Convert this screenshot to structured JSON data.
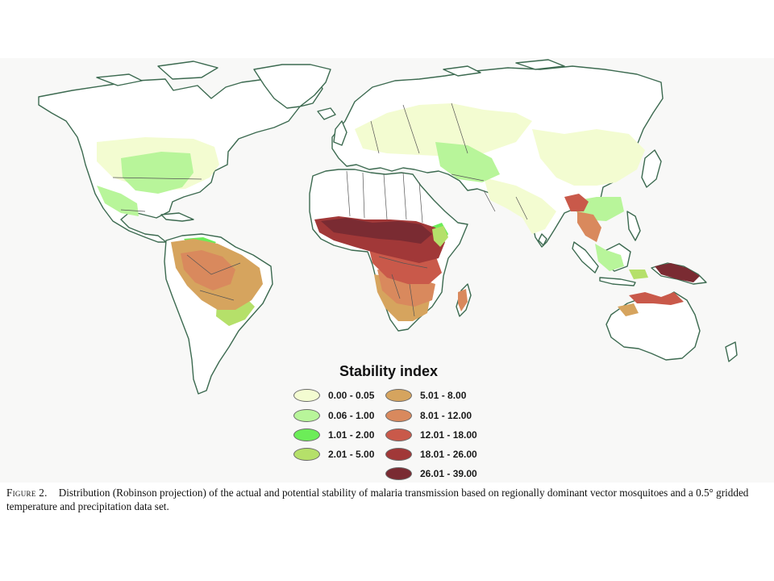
{
  "legend": {
    "title": "Stability index",
    "items": [
      {
        "label": "0.00 - 0.05",
        "color": "#f3fcd1"
      },
      {
        "label": "0.06 - 1.00",
        "color": "#b8f59a"
      },
      {
        "label": "1.01 - 2.00",
        "color": "#6ced58"
      },
      {
        "label": "2.01 - 5.00",
        "color": "#b5e06a"
      },
      {
        "label": "5.01 - 8.00",
        "color": "#d6a45e"
      },
      {
        "label": "8.01 - 12.00",
        "color": "#d9895d"
      },
      {
        "label": "12.01 - 18.00",
        "color": "#c9594a"
      },
      {
        "label": "18.01 - 26.00",
        "color": "#a13838"
      },
      {
        "label": "26.01 - 39.00",
        "color": "#7a2b32"
      }
    ]
  },
  "map": {
    "background_color": "#f8f8f7",
    "coastline_color": "#3c6a50",
    "border_color": "#555555"
  },
  "caption": {
    "label": "Figure 2.",
    "text": "Distribution (Robinson projection) of the actual and potential stability of malaria transmission based on regionally dominant vector mosquitoes and a 0.5° gridded temperature and precipitation data set."
  }
}
